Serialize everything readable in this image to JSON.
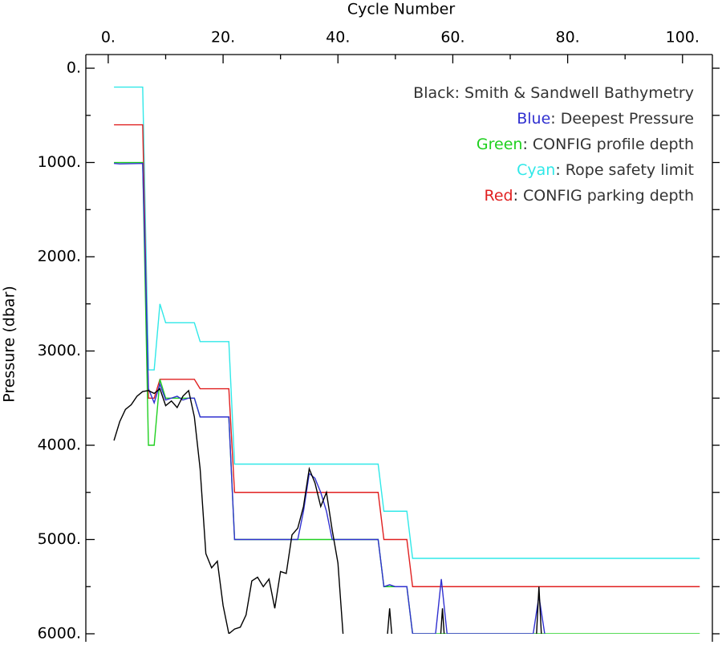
{
  "chart_data": {
    "type": "line",
    "x_label": "Cycle Number",
    "y_label": "Pressure (dbar)",
    "xlim": [
      -3.9,
      105.2
    ],
    "ylim": [
      6000,
      -145
    ],
    "xticks": [
      {
        "value": 0,
        "label": "0."
      },
      {
        "value": 20,
        "label": "20."
      },
      {
        "value": 40,
        "label": "40."
      },
      {
        "value": 60,
        "label": "60."
      },
      {
        "value": 80,
        "label": "80."
      },
      {
        "value": 100,
        "label": "100."
      }
    ],
    "xminorticks": [
      10,
      30,
      50,
      70,
      90
    ],
    "yticks": [
      {
        "value": 0,
        "label": "0."
      },
      {
        "value": 1000,
        "label": "1000."
      },
      {
        "value": 2000,
        "label": "2000."
      },
      {
        "value": 3000,
        "label": "3000."
      },
      {
        "value": 4000,
        "label": "4000."
      },
      {
        "value": 5000,
        "label": "5000."
      },
      {
        "value": 6000,
        "label": "6000."
      }
    ],
    "yminorticks": [
      500,
      1500,
      2500,
      3500,
      4500,
      5500
    ],
    "legend": "top-right",
    "series": [
      {
        "name": "Black: Smith & Sandwell Bathymetry",
        "color": "#000000",
        "x": [
          1,
          2,
          3,
          4,
          5,
          6,
          7,
          8,
          9,
          10,
          11,
          12,
          13,
          14,
          15,
          16,
          17,
          18,
          19,
          20,
          21,
          22,
          23,
          24,
          25,
          26,
          27,
          28,
          29,
          30,
          31,
          32,
          33,
          34,
          35,
          36,
          37,
          38,
          39,
          40,
          41,
          45,
          48.5,
          49,
          49.5,
          52,
          57.8,
          58.2,
          58.6,
          60,
          74.5,
          75,
          75.5
        ],
        "values": [
          3950,
          3750,
          3620,
          3570,
          3480,
          3430,
          3420,
          3450,
          3400,
          3580,
          3530,
          3600,
          3480,
          3420,
          3700,
          4250,
          5150,
          5300,
          5230,
          5700,
          6000,
          5950,
          5930,
          5800,
          5440,
          5400,
          5500,
          5420,
          5730,
          5340,
          5360,
          4950,
          4880,
          4650,
          4250,
          4400,
          4650,
          4500,
          4900,
          5250,
          6100,
          null,
          6100,
          5730,
          6100,
          null,
          6100,
          5730,
          6100,
          null,
          6100,
          5500,
          6100
        ]
      },
      {
        "name": "Blue: Deepest Pressure",
        "color": "#3030d0",
        "x": [
          1,
          2,
          6,
          7,
          8,
          9,
          10,
          11,
          12,
          13,
          14,
          15,
          16,
          21,
          22,
          33,
          34,
          35,
          36,
          37,
          38,
          39,
          47,
          48,
          49,
          50,
          52,
          53,
          57,
          58,
          59,
          74,
          75,
          76
        ],
        "values": [
          1010,
          1015,
          1010,
          3400,
          3550,
          3350,
          3520,
          3500,
          3480,
          3520,
          3500,
          3500,
          3700,
          3700,
          5000,
          5000,
          4700,
          4300,
          4350,
          4500,
          4700,
          5000,
          5000,
          5500,
          5480,
          5500,
          5500,
          6000,
          6000,
          5420,
          6000,
          6000,
          5600,
          6000
        ]
      },
      {
        "name": "Green: CONFIG profile depth",
        "color": "#20d020",
        "x": [
          1,
          6,
          7,
          8,
          9,
          10,
          15,
          16,
          21,
          22,
          47,
          48,
          52,
          53,
          103
        ],
        "values": [
          1000,
          1000,
          4000,
          4000,
          3300,
          3500,
          3500,
          3700,
          3700,
          5000,
          5000,
          5500,
          5500,
          6000,
          6000
        ]
      },
      {
        "name": "Cyan: Rope safety limit",
        "color": "#30e8e8",
        "x": [
          1,
          6,
          7,
          8,
          9,
          10,
          15,
          16,
          21,
          22,
          47,
          48,
          52,
          53,
          103
        ],
        "values": [
          200,
          200,
          3200,
          3200,
          2500,
          2700,
          2700,
          2900,
          2900,
          4200,
          4200,
          4700,
          4700,
          5200,
          5200
        ]
      },
      {
        "name": "Red: CONFIG parking depth",
        "color": "#e02020",
        "x": [
          1,
          6,
          7,
          8,
          9,
          10,
          15,
          16,
          21,
          22,
          47,
          48,
          52,
          53,
          103
        ],
        "values": [
          600,
          600,
          3500,
          3500,
          3300,
          3300,
          3300,
          3400,
          3400,
          4500,
          4500,
          5000,
          5000,
          5500,
          5500
        ]
      }
    ]
  }
}
